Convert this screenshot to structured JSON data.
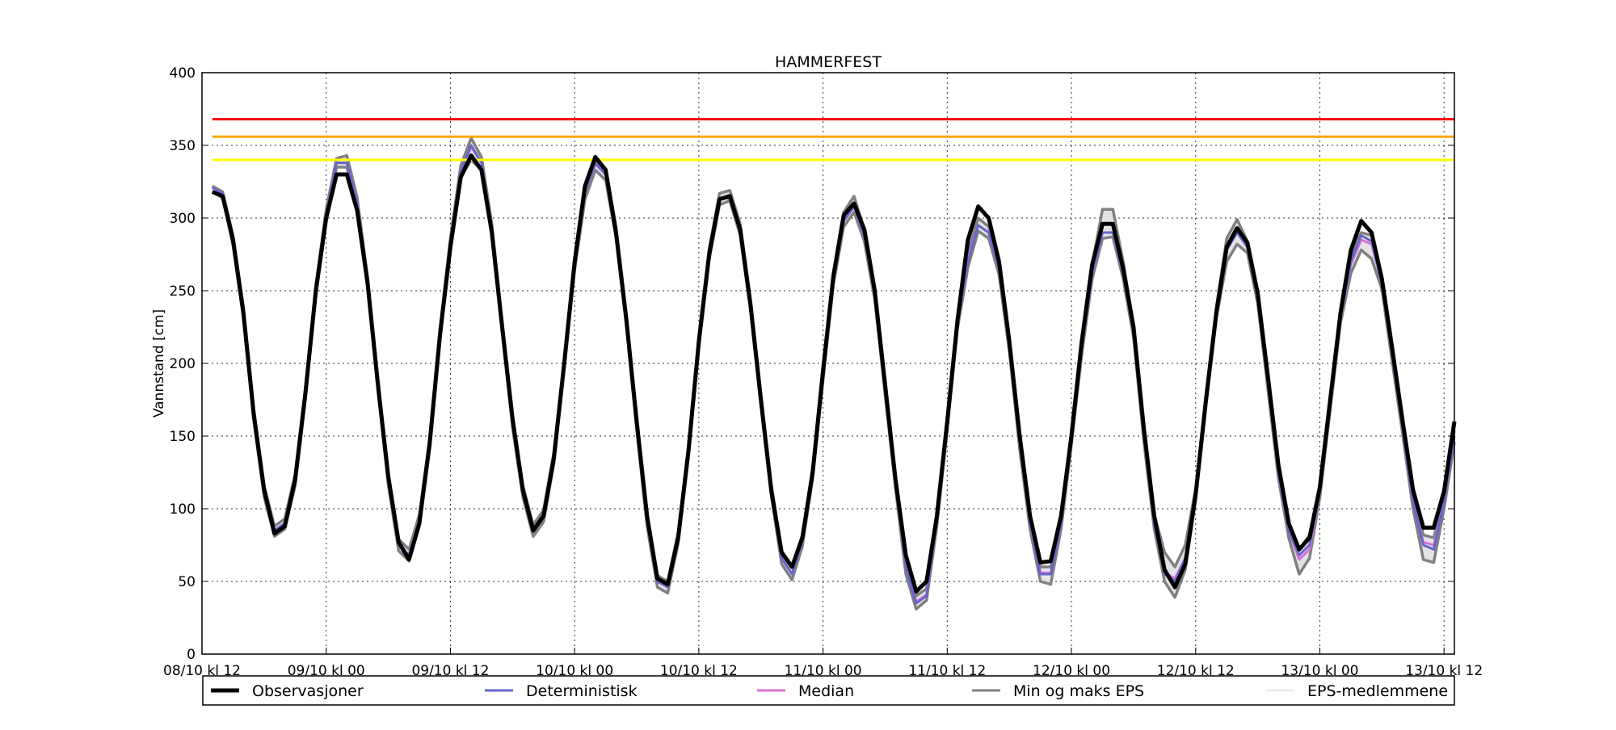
{
  "chart_data": {
    "type": "line",
    "title": "HAMMERFEST",
    "xlabel": "",
    "ylabel": "Vannstand [cm]",
    "ylim": [
      0,
      400
    ],
    "yticks": [
      0,
      50,
      100,
      150,
      200,
      250,
      300,
      350,
      400
    ],
    "xlim": [
      "08/10 12:00",
      "13/10 13:00"
    ],
    "xticks": [
      {
        "t": "08/10 12:00",
        "label": "08/10 kl 12"
      },
      {
        "t": "09/10 00:00",
        "label": "09/10 kl 00"
      },
      {
        "t": "09/10 12:00",
        "label": "09/10 kl 12"
      },
      {
        "t": "10/10 00:00",
        "label": "10/10 kl 00"
      },
      {
        "t": "10/10 12:00",
        "label": "10/10 kl 12"
      },
      {
        "t": "11/10 00:00",
        "label": "11/10 kl 00"
      },
      {
        "t": "11/10 12:00",
        "label": "11/10 kl 12"
      },
      {
        "t": "12/10 00:00",
        "label": "12/10 kl 00"
      },
      {
        "t": "12/10 12:00",
        "label": "12/10 kl 12"
      },
      {
        "t": "13/10 00:00",
        "label": "13/10 kl 00"
      },
      {
        "t": "13/10 12:00",
        "label": "13/10 kl 12"
      }
    ],
    "grid": true,
    "legend_position": "bottom",
    "first_time": "08/10 13:00",
    "time_step_hours": 1,
    "thresholds": [
      {
        "value": 368,
        "color": "#ff0000"
      },
      {
        "value": 356,
        "color": "#ffa500"
      },
      {
        "value": 340,
        "color": "#ffff00"
      }
    ],
    "series": [
      {
        "name": "Observasjoner",
        "color": "#000000",
        "values": [
          318,
          315,
          285,
          235,
          165,
          113,
          83,
          88,
          120,
          180,
          250,
          300,
          330,
          330,
          305,
          255,
          185,
          122,
          77,
          65,
          90,
          145,
          220,
          280,
          328,
          343,
          333,
          290,
          225,
          162,
          113,
          85,
          95,
          135,
          200,
          270,
          322,
          342,
          333,
          290,
          230,
          160,
          95,
          52,
          48,
          80,
          140,
          215,
          275,
          313,
          315,
          292,
          240,
          175,
          113,
          70,
          60,
          80,
          125,
          195,
          260,
          302,
          310,
          292,
          250,
          185,
          120,
          68,
          43,
          50,
          95,
          160,
          230,
          285,
          308,
          300,
          270,
          215,
          150,
          95,
          63,
          64,
          95,
          150,
          215,
          268,
          296,
          296,
          265,
          225,
          155,
          95,
          58,
          46,
          62,
          110,
          175,
          235,
          280,
          293,
          283,
          248,
          190,
          130,
          90,
          72,
          80,
          115,
          175,
          235,
          278,
          298,
          290,
          258,
          210,
          160,
          113,
          87,
          87,
          112,
          160
        ]
      },
      {
        "name": "Deterministisk",
        "color": "#6666cc",
        "values": [
          321,
          317,
          285,
          235,
          165,
          112,
          85,
          90,
          120,
          180,
          250,
          302,
          338,
          338,
          310,
          255,
          185,
          120,
          75,
          68,
          92,
          145,
          220,
          282,
          332,
          350,
          338,
          292,
          225,
          160,
          112,
          85,
          95,
          135,
          200,
          268,
          318,
          338,
          330,
          290,
          230,
          158,
          92,
          50,
          46,
          80,
          140,
          215,
          275,
          313,
          316,
          292,
          240,
          175,
          113,
          66,
          55,
          78,
          125,
          192,
          258,
          298,
          308,
          288,
          248,
          182,
          118,
          60,
          35,
          40,
          92,
          158,
          228,
          270,
          295,
          290,
          265,
          212,
          145,
          90,
          55,
          55,
          90,
          148,
          210,
          262,
          290,
          290,
          262,
          222,
          150,
          90,
          55,
          50,
          66,
          110,
          175,
          235,
          278,
          290,
          280,
          245,
          185,
          125,
          85,
          68,
          75,
          112,
          172,
          232,
          270,
          288,
          284,
          255,
          205,
          155,
          105,
          75,
          72,
          105,
          150
        ]
      },
      {
        "name": "Median",
        "color": "#da70d6",
        "values": [
          321,
          317,
          285,
          235,
          165,
          112,
          85,
          90,
          120,
          180,
          250,
          302,
          338,
          338,
          310,
          255,
          185,
          120,
          75,
          68,
          92,
          145,
          220,
          282,
          332,
          349,
          338,
          292,
          225,
          160,
          112,
          85,
          95,
          135,
          200,
          268,
          318,
          337,
          330,
          290,
          230,
          158,
          92,
          50,
          46,
          80,
          140,
          215,
          275,
          313,
          316,
          292,
          240,
          175,
          113,
          66,
          55,
          78,
          125,
          192,
          258,
          298,
          308,
          288,
          248,
          182,
          118,
          60,
          36,
          41,
          92,
          158,
          228,
          272,
          295,
          290,
          265,
          212,
          145,
          90,
          56,
          56,
          90,
          148,
          210,
          262,
          290,
          290,
          262,
          222,
          150,
          90,
          56,
          52,
          66,
          110,
          175,
          235,
          280,
          292,
          282,
          245,
          185,
          125,
          85,
          65,
          72,
          112,
          172,
          232,
          268,
          285,
          282,
          255,
          205,
          155,
          105,
          77,
          75,
          105,
          150
        ]
      },
      {
        "name": "Min og maks EPS",
        "color": "#808080",
        "role": "min",
        "values": [
          318,
          314,
          281,
          231,
          161,
          108,
          81,
          86,
          116,
          176,
          246,
          298,
          335,
          335,
          306,
          251,
          181,
          116,
          71,
          64,
          88,
          141,
          216,
          278,
          328,
          340,
          333,
          288,
          221,
          156,
          108,
          81,
          91,
          131,
          196,
          264,
          313,
          333,
          326,
          286,
          226,
          154,
          88,
          46,
          42,
          76,
          136,
          211,
          271,
          309,
          312,
          288,
          236,
          171,
          109,
          62,
          51,
          74,
          121,
          188,
          254,
          294,
          304,
          284,
          244,
          178,
          114,
          55,
          31,
          37,
          88,
          154,
          224,
          266,
          291,
          286,
          261,
          208,
          141,
          86,
          50,
          48,
          86,
          144,
          206,
          258,
          286,
          287,
          258,
          218,
          146,
          86,
          50,
          39,
          58,
          106,
          171,
          231,
          270,
          282,
          276,
          241,
          181,
          121,
          80,
          55,
          66,
          108,
          168,
          228,
          262,
          278,
          272,
          251,
          201,
          151,
          100,
          65,
          63,
          100,
          146
        ]
      },
      {
        "name": "Min og maks EPS",
        "color": "#808080",
        "role": "max",
        "values": [
          322,
          318,
          288,
          239,
          169,
          116,
          88,
          93,
          124,
          184,
          254,
          306,
          341,
          343,
          314,
          259,
          189,
          124,
          79,
          72,
          96,
          149,
          224,
          286,
          336,
          355,
          342,
          296,
          229,
          164,
          116,
          89,
          99,
          139,
          204,
          272,
          322,
          340,
          334,
          294,
          234,
          162,
          96,
          54,
          50,
          84,
          144,
          219,
          279,
          317,
          319,
          296,
          244,
          179,
          117,
          70,
          60,
          82,
          129,
          196,
          262,
          304,
          315,
          292,
          252,
          186,
          122,
          66,
          40,
          45,
          96,
          162,
          232,
          276,
          300,
          294,
          269,
          216,
          149,
          94,
          60,
          60,
          94,
          152,
          214,
          268,
          306,
          306,
          270,
          226,
          154,
          96,
          70,
          60,
          75,
          114,
          179,
          239,
          286,
          299,
          284,
          249,
          189,
          129,
          90,
          72,
          82,
          116,
          176,
          236,
          274,
          290,
          288,
          259,
          209,
          159,
          112,
          82,
          80,
          109,
          154
        ]
      }
    ],
    "legend": [
      {
        "label": "Observasjoner",
        "color": "#000000"
      },
      {
        "label": "Deterministisk",
        "color": "#6666cc"
      },
      {
        "label": "Median",
        "color": "#da70d6"
      },
      {
        "label": "Min og maks EPS",
        "color": "#808080"
      },
      {
        "label": "EPS-medlemmene",
        "color": "#dddddd"
      }
    ]
  }
}
